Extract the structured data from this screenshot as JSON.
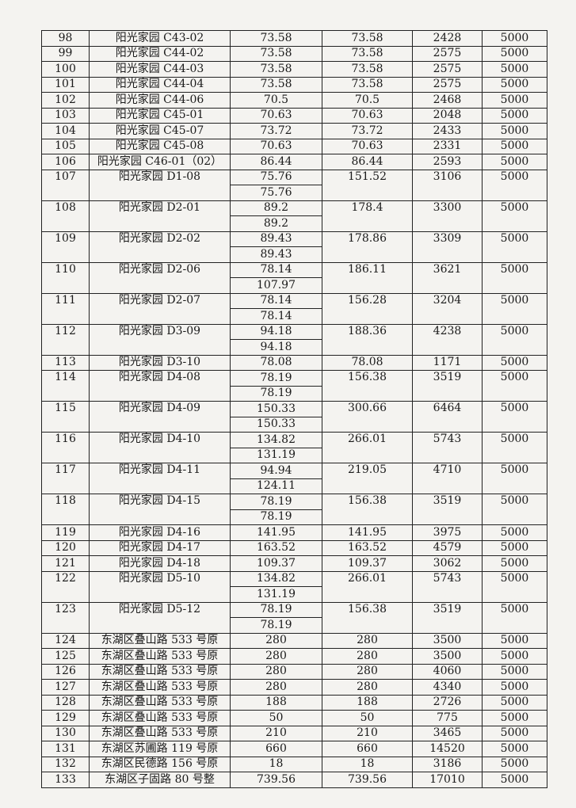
{
  "rows": [
    {
      "no": "98",
      "name": "阳光家园 C43-02",
      "areas": [
        "73.58"
      ],
      "total": "73.58",
      "amount": "2428",
      "limit": "5000"
    },
    {
      "no": "99",
      "name": "阳光家园 C44-02",
      "areas": [
        "73.58"
      ],
      "total": "73.58",
      "amount": "2575",
      "limit": "5000"
    },
    {
      "no": "100",
      "name": "阳光家园 C44-03",
      "areas": [
        "73.58"
      ],
      "total": "73.58",
      "amount": "2575",
      "limit": "5000"
    },
    {
      "no": "101",
      "name": "阳光家园 C44-04",
      "areas": [
        "73.58"
      ],
      "total": "73.58",
      "amount": "2575",
      "limit": "5000"
    },
    {
      "no": "102",
      "name": "阳光家园 C44-06",
      "areas": [
        "70.5"
      ],
      "total": "70.5",
      "amount": "2468",
      "limit": "5000"
    },
    {
      "no": "103",
      "name": "阳光家园 C45-01",
      "areas": [
        "70.63"
      ],
      "total": "70.63",
      "amount": "2048",
      "limit": "5000"
    },
    {
      "no": "104",
      "name": "阳光家园 C45-07",
      "areas": [
        "73.72"
      ],
      "total": "73.72",
      "amount": "2433",
      "limit": "5000"
    },
    {
      "no": "105",
      "name": "阳光家园 C45-08",
      "areas": [
        "70.63"
      ],
      "total": "70.63",
      "amount": "2331",
      "limit": "5000"
    },
    {
      "no": "106",
      "name": "阳光家园 C46-01（02）",
      "areas": [
        "86.44"
      ],
      "total": "86.44",
      "amount": "2593",
      "limit": "5000"
    },
    {
      "no": "107",
      "name": "阳光家园 D1-08",
      "areas": [
        "75.76",
        "75.76"
      ],
      "total": "151.52",
      "amount": "3106",
      "limit": "5000"
    },
    {
      "no": "108",
      "name": "阳光家园 D2-01",
      "areas": [
        "89.2",
        "89.2"
      ],
      "total": "178.4",
      "amount": "3300",
      "limit": "5000"
    },
    {
      "no": "109",
      "name": "阳光家园 D2-02",
      "areas": [
        "89.43",
        "89.43"
      ],
      "total": "178.86",
      "amount": "3309",
      "limit": "5000"
    },
    {
      "no": "110",
      "name": "阳光家园 D2-06",
      "areas": [
        "78.14",
        "107.97"
      ],
      "total": "186.11",
      "amount": "3621",
      "limit": "5000"
    },
    {
      "no": "111",
      "name": "阳光家园 D2-07",
      "areas": [
        "78.14",
        "78.14"
      ],
      "total": "156.28",
      "amount": "3204",
      "limit": "5000"
    },
    {
      "no": "112",
      "name": "阳光家园 D3-09",
      "areas": [
        "94.18",
        "94.18"
      ],
      "total": "188.36",
      "amount": "4238",
      "limit": "5000"
    },
    {
      "no": "113",
      "name": "阳光家园 D3-10",
      "areas": [
        "78.08"
      ],
      "total": "78.08",
      "amount": "1171",
      "limit": "5000"
    },
    {
      "no": "114",
      "name": "阳光家园 D4-08",
      "areas": [
        "78.19",
        "78.19"
      ],
      "total": "156.38",
      "amount": "3519",
      "limit": "5000"
    },
    {
      "no": "115",
      "name": "阳光家园 D4-09",
      "areas": [
        "150.33",
        "150.33"
      ],
      "total": "300.66",
      "amount": "6464",
      "limit": "5000"
    },
    {
      "no": "116",
      "name": "阳光家园 D4-10",
      "areas": [
        "134.82",
        "131.19"
      ],
      "total": "266.01",
      "amount": "5743",
      "limit": "5000"
    },
    {
      "no": "117",
      "name": "阳光家园 D4-11",
      "areas": [
        "94.94",
        "124.11"
      ],
      "total": "219.05",
      "amount": "4710",
      "limit": "5000"
    },
    {
      "no": "118",
      "name": "阳光家园 D4-15",
      "areas": [
        "78.19",
        "78.19"
      ],
      "total": "156.38",
      "amount": "3519",
      "limit": "5000"
    },
    {
      "no": "119",
      "name": "阳光家园 D4-16",
      "areas": [
        "141.95"
      ],
      "total": "141.95",
      "amount": "3975",
      "limit": "5000"
    },
    {
      "no": "120",
      "name": "阳光家园 D4-17",
      "areas": [
        "163.52"
      ],
      "total": "163.52",
      "amount": "4579",
      "limit": "5000"
    },
    {
      "no": "121",
      "name": "阳光家园 D4-18",
      "areas": [
        "109.37"
      ],
      "total": "109.37",
      "amount": "3062",
      "limit": "5000"
    },
    {
      "no": "122",
      "name": "阳光家园 D5-10",
      "areas": [
        "134.82",
        "131.19"
      ],
      "total": "266.01",
      "amount": "5743",
      "limit": "5000"
    },
    {
      "no": "123",
      "name": "阳光家园 D5-12",
      "areas": [
        "78.19",
        "78.19"
      ],
      "total": "156.38",
      "amount": "3519",
      "limit": "5000"
    },
    {
      "no": "124",
      "name": "东湖区叠山路 533 号原",
      "areas": [
        "280"
      ],
      "total": "280",
      "amount": "3500",
      "limit": "5000"
    },
    {
      "no": "125",
      "name": "东湖区叠山路 533 号原",
      "areas": [
        "280"
      ],
      "total": "280",
      "amount": "3500",
      "limit": "5000"
    },
    {
      "no": "126",
      "name": "东湖区叠山路 533 号原",
      "areas": [
        "280"
      ],
      "total": "280",
      "amount": "4060",
      "limit": "5000"
    },
    {
      "no": "127",
      "name": "东湖区叠山路 533 号原",
      "areas": [
        "280"
      ],
      "total": "280",
      "amount": "4340",
      "limit": "5000"
    },
    {
      "no": "128",
      "name": "东湖区叠山路 533 号原",
      "areas": [
        "188"
      ],
      "total": "188",
      "amount": "2726",
      "limit": "5000"
    },
    {
      "no": "129",
      "name": "东湖区叠山路 533 号原",
      "areas": [
        "50"
      ],
      "total": "50",
      "amount": "775",
      "limit": "5000"
    },
    {
      "no": "130",
      "name": "东湖区叠山路 533 号原",
      "areas": [
        "210"
      ],
      "total": "210",
      "amount": "3465",
      "limit": "5000"
    },
    {
      "no": "131",
      "name": "东湖区苏圃路 119 号原",
      "areas": [
        "660"
      ],
      "total": "660",
      "amount": "14520",
      "limit": "5000"
    },
    {
      "no": "132",
      "name": "东湖区民德路 156 号原",
      "areas": [
        "18"
      ],
      "total": "18",
      "amount": "3186",
      "limit": "5000"
    },
    {
      "no": "133",
      "name": "东湖区子固路 80 号整",
      "areas": [
        "739.56"
      ],
      "total": "739.56",
      "amount": "17010",
      "limit": "5000"
    }
  ]
}
